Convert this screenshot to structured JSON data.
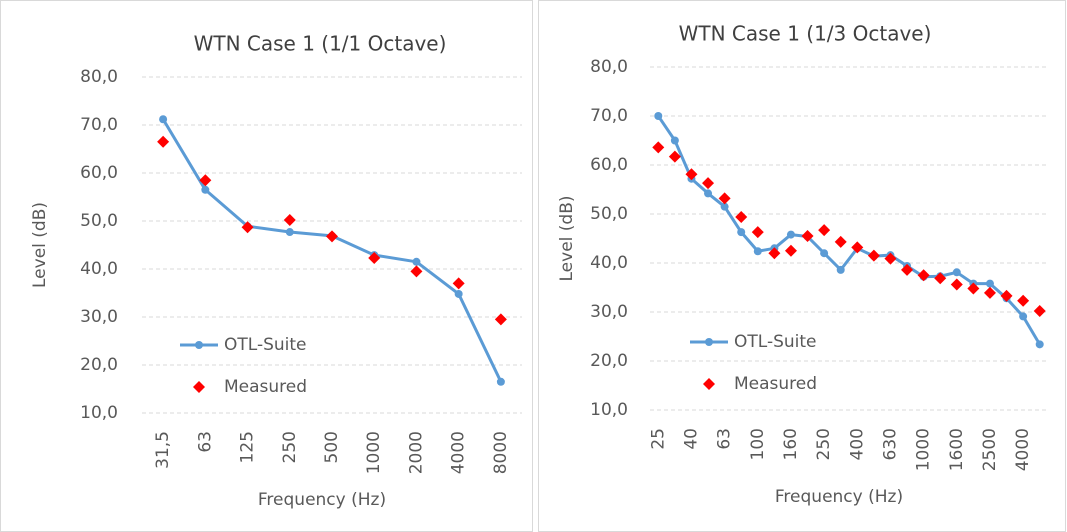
{
  "chart_data": [
    {
      "type": "line",
      "title": "WTN Case 1 (1/1 Octave)",
      "x_label": "Frequency (Hz)",
      "y_label": "Level (dB)",
      "categories": [
        "31,5",
        "63",
        "125",
        "250",
        "500",
        "1000",
        "2000",
        "4000",
        "8000"
      ],
      "ylim": [
        10,
        80
      ],
      "yticks": [
        {
          "value": 10,
          "label": "10,0"
        },
        {
          "value": 20,
          "label": "20,0"
        },
        {
          "value": 30,
          "label": "30,0"
        },
        {
          "value": 40,
          "label": "40,0"
        },
        {
          "value": 50,
          "label": "50,0"
        },
        {
          "value": 60,
          "label": "60,0"
        },
        {
          "value": 70,
          "label": "70,0"
        },
        {
          "value": 80,
          "label": "80,0"
        }
      ],
      "grid": true,
      "legend": "lower left",
      "series": [
        {
          "name": "OTL-Suite",
          "color": "#5b9bd5",
          "mode": "lines+markers",
          "marker": "circle",
          "values": [
            71.2,
            56.5,
            48.9,
            47.7,
            46.9,
            42.9,
            41.5,
            34.8,
            16.5
          ]
        },
        {
          "name": "Measured",
          "color": "#ff0000",
          "mode": "markers",
          "marker": "diamond",
          "values": [
            66.5,
            58.5,
            48.7,
            50.2,
            46.8,
            42.3,
            39.5,
            37.0,
            29.5
          ]
        }
      ]
    },
    {
      "type": "line",
      "title": "WTN Case 1 (1/3 Octave)",
      "x_label": "Frequency (Hz)",
      "y_label": "Level (dB)",
      "categories": [
        "25",
        null,
        "40",
        null,
        "63",
        null,
        "100",
        null,
        "160",
        null,
        "250",
        null,
        "400",
        null,
        "630",
        null,
        "1000",
        null,
        "1600",
        null,
        "2500",
        null,
        "4000",
        null
      ],
      "ylim": [
        10,
        80
      ],
      "yticks": [
        {
          "value": 10,
          "label": "10,0"
        },
        {
          "value": 20,
          "label": "20,0"
        },
        {
          "value": 30,
          "label": "30,0"
        },
        {
          "value": 40,
          "label": "40,0"
        },
        {
          "value": 50,
          "label": "50,0"
        },
        {
          "value": 60,
          "label": "60,0"
        },
        {
          "value": 70,
          "label": "70,0"
        },
        {
          "value": 80,
          "label": "80,0"
        }
      ],
      "grid": true,
      "legend": "lower left",
      "series": [
        {
          "name": "OTL-Suite",
          "color": "#5b9bd5",
          "mode": "lines+markers",
          "marker": "circle",
          "values": [
            70.0,
            65.0,
            57.2,
            54.2,
            51.5,
            46.3,
            42.4,
            43.0,
            45.8,
            45.4,
            42.0,
            38.6,
            43.0,
            41.4,
            41.6,
            39.4,
            37.2,
            37.3,
            38.1,
            35.8,
            35.8,
            32.8,
            29.1,
            23.4
          ]
        },
        {
          "name": "Measured",
          "color": "#ff0000",
          "mode": "markers",
          "marker": "diamond",
          "values": [
            63.6,
            61.7,
            58.1,
            56.3,
            53.2,
            49.4,
            46.3,
            42.0,
            42.5,
            45.5,
            46.7,
            44.3,
            43.2,
            41.5,
            40.9,
            38.6,
            37.5,
            36.9,
            35.6,
            34.8,
            33.9,
            33.3,
            32.3,
            30.2
          ]
        }
      ]
    }
  ]
}
